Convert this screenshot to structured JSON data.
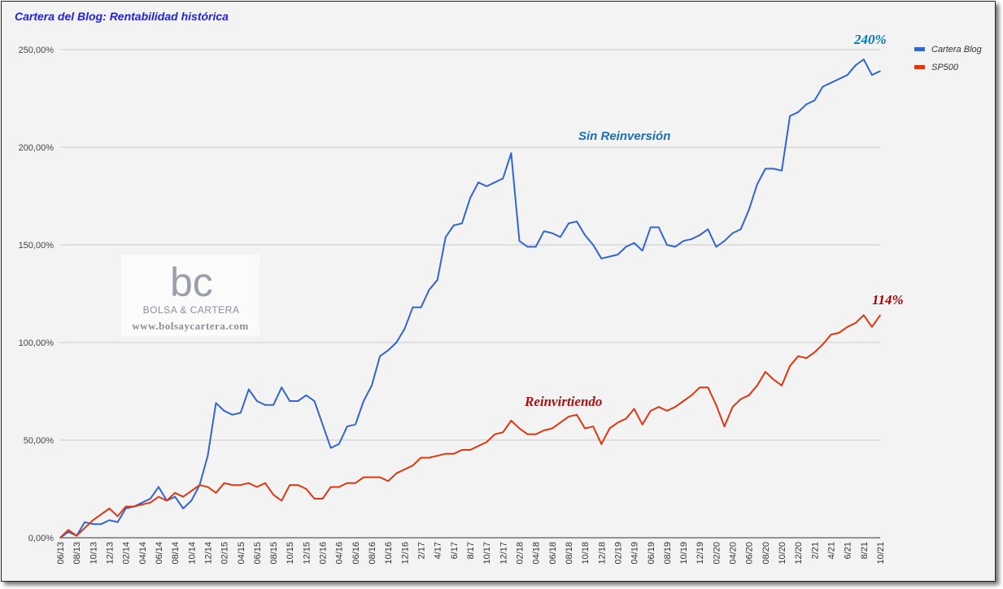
{
  "chart_data": {
    "type": "line",
    "title": "Cartera del Blog: Rentabilidad histórica",
    "ylim": [
      0,
      260
    ],
    "y_ticks": [
      "0,00%",
      "50,00%",
      "100,00%",
      "150,00%",
      "200,00%",
      "250,00%"
    ],
    "y_tick_values": [
      0,
      50,
      100,
      150,
      200,
      250
    ],
    "grid": true,
    "legend_position": "top-right",
    "x_tick_labels": [
      "06/13",
      "08/13",
      "10/13",
      "12/13",
      "02/14",
      "04/14",
      "06/14",
      "08/14",
      "10/14",
      "12/14",
      "02/15",
      "04/15",
      "06/15",
      "08/15",
      "10/15",
      "12/15",
      "02/16",
      "04/16",
      "06/16",
      "08/16",
      "10/16",
      "12/16",
      "2/17",
      "4/17",
      "6/17",
      "8/17",
      "10/17",
      "12/17",
      "02/18",
      "04/18",
      "06/18",
      "08/18",
      "10/18",
      "12/18",
      "02/19",
      "04/19",
      "06/19",
      "08/19",
      "10/19",
      "12/19",
      "02/20",
      "04/20",
      "06/20",
      "08/20",
      "10/20",
      "12/20",
      "2/21",
      "4/21",
      "6/21",
      "8/21",
      "10/21"
    ],
    "series": [
      {
        "name": "Cartera Blog",
        "color": "#3366cc",
        "values": [
          0,
          3,
          1,
          8,
          7,
          7,
          9,
          8,
          15,
          16,
          18,
          20,
          26,
          19,
          21,
          15,
          19,
          27,
          42,
          69,
          65,
          63,
          64,
          76,
          70,
          68,
          68,
          77,
          70,
          70,
          73,
          70,
          58,
          46,
          48,
          57,
          58,
          70,
          78,
          93,
          96,
          100,
          107,
          118,
          118,
          127,
          132,
          154,
          160,
          161,
          174,
          182,
          180,
          182,
          184,
          197,
          152,
          149,
          149,
          157,
          156,
          154,
          161,
          162,
          155,
          150,
          143,
          144,
          145,
          149,
          151,
          147,
          159,
          159,
          150,
          149,
          152,
          153,
          155,
          158,
          149,
          152,
          156,
          158,
          168,
          181,
          189,
          189,
          188,
          216,
          218,
          222,
          224,
          231,
          233,
          235,
          237,
          242,
          245,
          237,
          239
        ]
      },
      {
        "name": "SP500",
        "color": "#dc3912",
        "values": [
          0,
          4,
          1,
          5,
          9,
          12,
          15,
          11,
          16,
          16,
          17,
          18,
          21,
          19,
          23,
          21,
          24,
          27,
          26,
          23,
          28,
          27,
          27,
          28,
          26,
          28,
          22,
          19,
          27,
          27,
          25,
          20,
          20,
          26,
          26,
          28,
          28,
          31,
          31,
          31,
          29,
          33,
          35,
          37,
          41,
          41,
          42,
          43,
          43,
          45,
          45,
          47,
          49,
          53,
          54,
          60,
          56,
          53,
          53,
          55,
          56,
          59,
          62,
          63,
          56,
          57,
          48,
          56,
          59,
          61,
          66,
          58,
          65,
          67,
          65,
          67,
          70,
          73,
          77,
          77,
          68,
          57,
          67,
          71,
          73,
          78,
          85,
          81,
          78,
          88,
          93,
          92,
          95,
          99,
          104,
          105,
          108,
          110,
          114,
          108,
          114
        ]
      }
    ],
    "annotations": [
      {
        "text": "240%",
        "color": "#0077b8"
      },
      {
        "text": "Sin Reinversión",
        "color": "#1a6fb3"
      },
      {
        "text": "114%",
        "color": "#aa0000"
      },
      {
        "text": "Reinvirtiendo",
        "color": "#aa1111"
      }
    ]
  },
  "watermark": {
    "logo_letters": "bc",
    "name": "BOLSA & CARTERA",
    "url": "www.bolsaycartera.com"
  }
}
